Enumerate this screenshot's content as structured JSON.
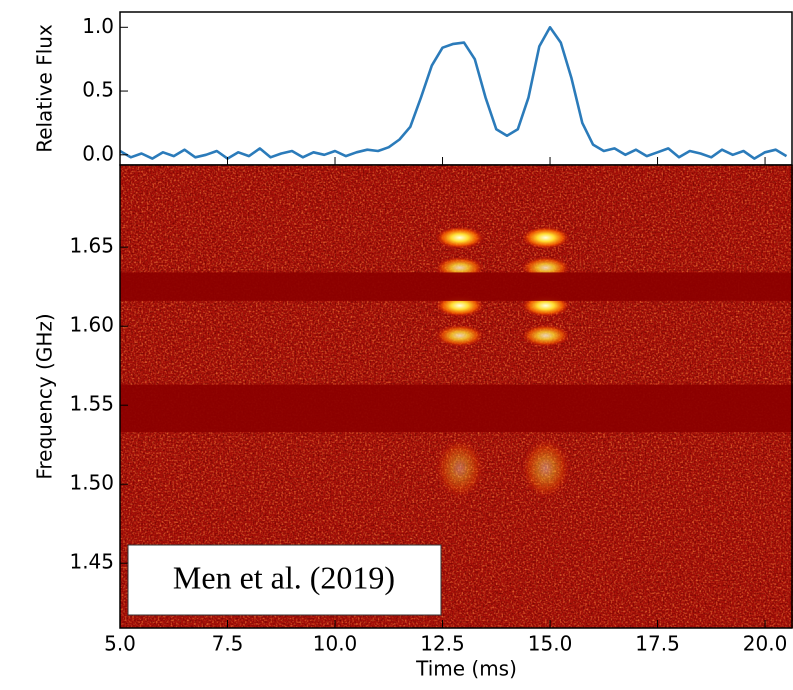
{
  "chart_data": [
    {
      "type": "line",
      "ylabel": "Relative Flux",
      "xlim": [
        5.0,
        20.65
      ],
      "ylim": [
        -0.08,
        1.12
      ],
      "yticks": [
        {
          "value": 0.0,
          "label": "0.0"
        },
        {
          "value": 0.5,
          "label": "0.5"
        },
        {
          "value": 1.0,
          "label": "1.0"
        }
      ],
      "series": [
        {
          "color": "#2b7bba",
          "x": [
            5.0,
            5.25,
            5.5,
            5.75,
            6.0,
            6.25,
            6.5,
            6.75,
            7.0,
            7.25,
            7.5,
            7.75,
            8.0,
            8.25,
            8.5,
            8.75,
            9.0,
            9.25,
            9.5,
            9.75,
            10.0,
            10.25,
            10.5,
            10.75,
            11.0,
            11.25,
            11.5,
            11.75,
            12.0,
            12.25,
            12.5,
            12.75,
            13.0,
            13.25,
            13.5,
            13.75,
            14.0,
            14.25,
            14.5,
            14.75,
            15.0,
            15.25,
            15.5,
            15.75,
            16.0,
            16.25,
            16.5,
            16.75,
            17.0,
            17.25,
            17.5,
            17.75,
            18.0,
            18.25,
            18.5,
            18.75,
            19.0,
            19.25,
            19.5,
            19.75,
            20.0,
            20.25,
            20.5
          ],
          "values": [
            0.03,
            -0.02,
            0.01,
            -0.03,
            0.02,
            -0.01,
            0.04,
            -0.02,
            0.0,
            0.03,
            -0.03,
            0.02,
            -0.01,
            0.05,
            -0.02,
            0.01,
            0.03,
            -0.02,
            0.02,
            0.0,
            0.03,
            -0.01,
            0.02,
            0.04,
            0.03,
            0.06,
            0.12,
            0.22,
            0.45,
            0.7,
            0.84,
            0.87,
            0.88,
            0.75,
            0.45,
            0.2,
            0.15,
            0.2,
            0.45,
            0.85,
            1.0,
            0.88,
            0.6,
            0.25,
            0.08,
            0.03,
            0.05,
            0.0,
            0.04,
            -0.01,
            0.02,
            0.05,
            -0.02,
            0.03,
            0.01,
            -0.02,
            0.04,
            0.0,
            0.03,
            -0.03,
            0.02,
            0.04,
            -0.01
          ]
        }
      ]
    },
    {
      "type": "heatmap",
      "xlabel": "Time (ms)",
      "ylabel": "Frequency (GHz)",
      "annotation": "Men et al. (2019)",
      "xlim": [
        5.0,
        20.65
      ],
      "ylim": [
        1.409,
        1.702
      ],
      "xticks": [
        {
          "value": 5.0,
          "label": "5.0"
        },
        7.5,
        {
          "value": 10.0,
          "label": "10.0"
        },
        12.5,
        {
          "value": 15.0,
          "label": "15.0"
        },
        17.5,
        {
          "value": 20.0,
          "label": "20.0"
        }
      ],
      "yticks": [
        1.45,
        {
          "value": 1.5,
          "label": "1.50"
        },
        1.55,
        {
          "value": 1.6,
          "label": "1.60"
        },
        1.65
      ],
      "background_color": "#a50f08",
      "mask_color": "#8c0000",
      "masked_bands": [
        [
          1.616,
          1.634
        ],
        [
          1.533,
          1.563
        ]
      ],
      "patches": [
        {
          "time": 12.9,
          "freq": 1.656,
          "intensity": 1.0
        },
        {
          "time": 12.9,
          "freq": 1.637,
          "intensity": 0.8
        },
        {
          "time": 12.9,
          "freq": 1.613,
          "intensity": 1.0
        },
        {
          "time": 12.9,
          "freq": 1.594,
          "intensity": 0.8
        },
        {
          "time": 12.9,
          "freq": 1.51,
          "intensity": 0.35
        },
        {
          "time": 14.9,
          "freq": 1.656,
          "intensity": 1.0
        },
        {
          "time": 14.9,
          "freq": 1.637,
          "intensity": 0.8
        },
        {
          "time": 14.9,
          "freq": 1.613,
          "intensity": 1.0
        },
        {
          "time": 14.9,
          "freq": 1.594,
          "intensity": 0.8
        },
        {
          "time": 14.9,
          "freq": 1.51,
          "intensity": 0.4
        }
      ]
    }
  ]
}
